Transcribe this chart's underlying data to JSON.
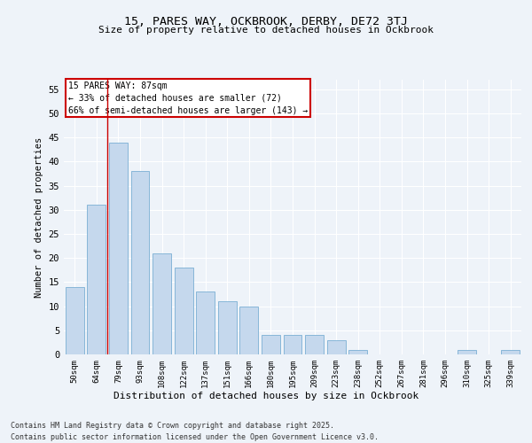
{
  "title": "15, PARES WAY, OCKBROOK, DERBY, DE72 3TJ",
  "subtitle": "Size of property relative to detached houses in Ockbrook",
  "xlabel": "Distribution of detached houses by size in Ockbrook",
  "ylabel": "Number of detached properties",
  "categories": [
    "50sqm",
    "64sqm",
    "79sqm",
    "93sqm",
    "108sqm",
    "122sqm",
    "137sqm",
    "151sqm",
    "166sqm",
    "180sqm",
    "195sqm",
    "209sqm",
    "223sqm",
    "238sqm",
    "252sqm",
    "267sqm",
    "281sqm",
    "296sqm",
    "310sqm",
    "325sqm",
    "339sqm"
  ],
  "values": [
    14,
    31,
    44,
    38,
    21,
    18,
    13,
    11,
    10,
    4,
    4,
    4,
    3,
    1,
    0,
    0,
    0,
    0,
    1,
    0,
    1
  ],
  "bar_color": "#c5d8ed",
  "bar_edge_color": "#7aafd4",
  "annotation_line1": "15 PARES WAY: 87sqm",
  "annotation_line2": "← 33% of detached houses are smaller (72)",
  "annotation_line3": "66% of semi-detached houses are larger (143) →",
  "annotation_box_color": "#cc0000",
  "annotation_box_fill": "#ffffff",
  "property_line_x": 1.5,
  "ylim": [
    0,
    57
  ],
  "yticks": [
    0,
    5,
    10,
    15,
    20,
    25,
    30,
    35,
    40,
    45,
    50,
    55
  ],
  "bg_color": "#eef3f9",
  "grid_color": "#ffffff",
  "footer_line1": "Contains HM Land Registry data © Crown copyright and database right 2025.",
  "footer_line2": "Contains public sector information licensed under the Open Government Licence v3.0."
}
